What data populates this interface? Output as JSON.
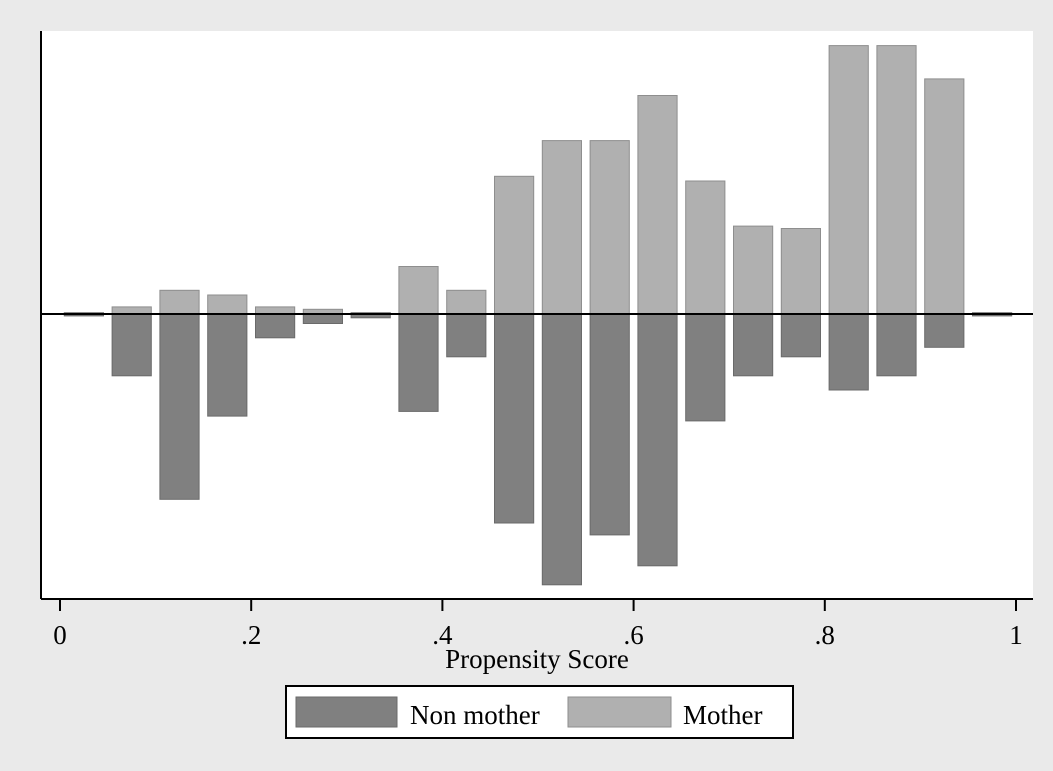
{
  "chart_data": {
    "type": "bar",
    "subtype": "back-to-back histogram",
    "title": "",
    "xlabel": "Propensity Score",
    "ylabel": "",
    "xlim": [
      -0.02,
      1.02
    ],
    "bin_width": 0.05,
    "x_ticks": [
      {
        "value": 0,
        "label": "0"
      },
      {
        "value": 0.2,
        "label": ".2"
      },
      {
        "value": 0.4,
        "label": ".4"
      },
      {
        "value": 0.6,
        "label": ".6"
      },
      {
        "value": 0.8,
        "label": ".8"
      },
      {
        "value": 1,
        "label": "1"
      }
    ],
    "bin_centers": [
      0.025,
      0.075,
      0.125,
      0.175,
      0.225,
      0.275,
      0.325,
      0.375,
      0.425,
      0.475,
      0.525,
      0.575,
      0.625,
      0.675,
      0.725,
      0.775,
      0.825,
      0.875,
      0.925,
      0.975
    ],
    "y_axis_labels_shown": false,
    "ylim": [
      -6.0,
      6.0
    ],
    "series": [
      {
        "name": "Non mother",
        "direction": "below",
        "color": "#808080",
        "values": [
          0.04,
          1.3,
          3.9,
          2.15,
          0.5,
          0.2,
          0.08,
          2.05,
          0.9,
          4.4,
          5.7,
          4.65,
          5.3,
          2.25,
          1.3,
          0.9,
          1.6,
          1.3,
          0.7,
          0.04
        ]
      },
      {
        "name": "Mother",
        "direction": "above",
        "color": "#b0b0b0",
        "values": [
          0.0,
          0.15,
          0.5,
          0.4,
          0.15,
          0.1,
          0.0,
          1.0,
          0.5,
          2.9,
          3.65,
          3.65,
          4.6,
          2.8,
          1.85,
          1.8,
          5.65,
          5.65,
          4.95,
          0.0
        ]
      }
    ],
    "grid": false,
    "legend": {
      "position": "bottom-center"
    }
  }
}
